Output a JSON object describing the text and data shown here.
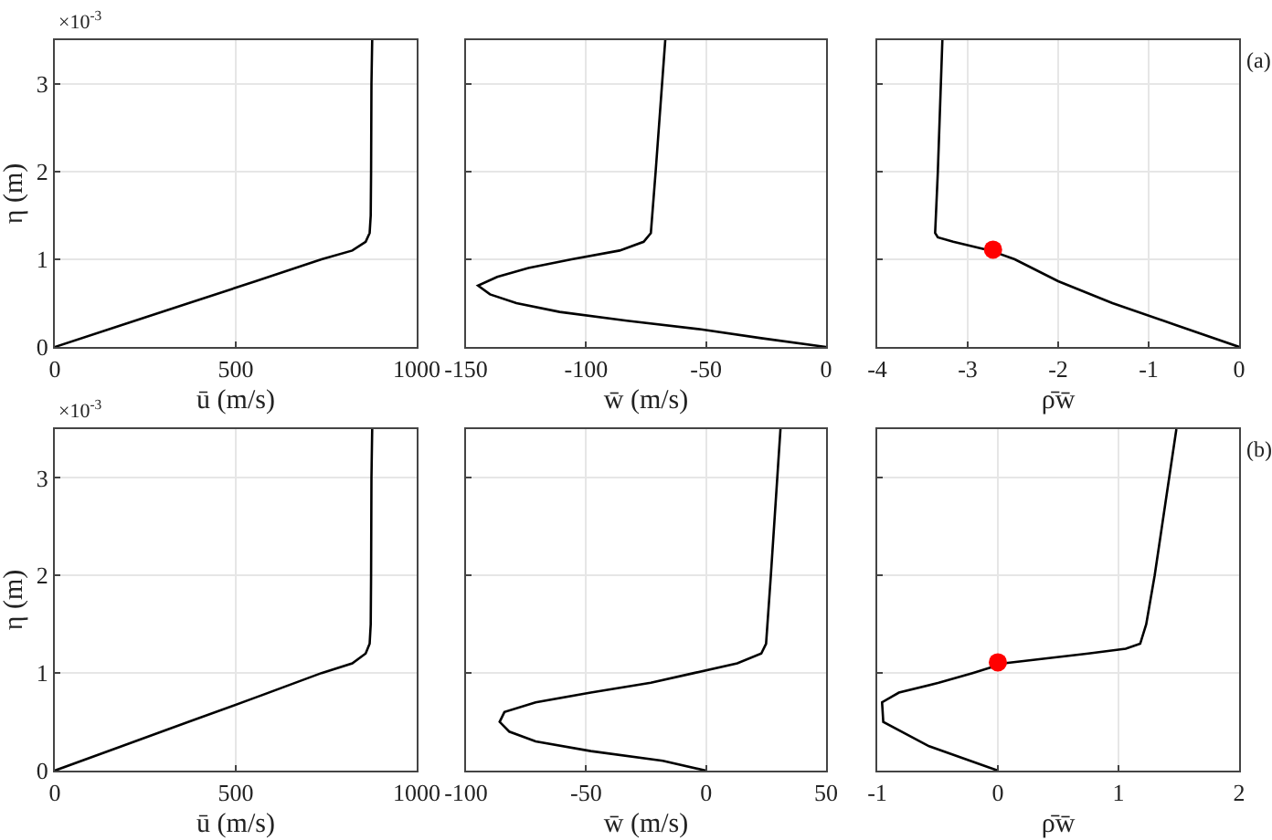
{
  "chart_data": [
    {
      "type": "line",
      "xlabel": "ū (m/s)",
      "ylabel": "η (m)",
      "xlim": [
        0,
        1000
      ],
      "xticks": [
        0,
        500,
        1000
      ],
      "ylim": [
        0,
        3.5
      ],
      "yticks": [
        0,
        1,
        2,
        3
      ],
      "grid": true,
      "annotations": [
        "×10$^{-3}$"
      ],
      "series": [
        {
          "color": "#000000",
          "marker": "none",
          "x": [
            0,
            185,
            370,
            555,
            737,
            822,
            859,
            870,
            873,
            874,
            875,
            877
          ],
          "values": [
            0,
            0.25,
            0.5,
            0.75,
            1.0,
            1.1,
            1.2,
            1.3,
            1.5,
            2,
            3,
            3.5
          ]
        }
      ]
    },
    {
      "type": "line",
      "xlabel": "w̄ (m/s)",
      "xlim": [
        -150,
        0
      ],
      "xticks": [
        -150,
        -100,
        -50,
        0
      ],
      "ylim": [
        0,
        3.5
      ],
      "yticks": [
        0,
        1,
        2,
        3
      ],
      "grid": true,
      "tick_labels": "x",
      "series": [
        {
          "color": "#000000",
          "marker": "none",
          "x": [
            0,
            -27,
            -52,
            -83,
            -111,
            -129,
            -140,
            -145,
            -137,
            -124,
            -106,
            -86,
            -76,
            -73,
            -71,
            -67
          ],
          "values": [
            0,
            0.1,
            0.2,
            0.3,
            0.4,
            0.5,
            0.6,
            0.7,
            0.8,
            0.9,
            1.0,
            1.1,
            1.2,
            1.3,
            2,
            3.5
          ]
        }
      ]
    },
    {
      "type": "line",
      "xlabel": "ρ̄w̄",
      "xlim": [
        -4,
        0
      ],
      "xticks": [
        -4,
        -3,
        -2,
        -1,
        0
      ],
      "ylim": [
        0,
        3.5
      ],
      "yticks": [
        0,
        1,
        2,
        3
      ],
      "grid": true,
      "tick_labels": "x",
      "annotations": [
        "(a)"
      ],
      "series": [
        {
          "color": "#000000",
          "marker": "none",
          "x": [
            0,
            -0.7,
            -1.4,
            -2.0,
            -2.48,
            -2.75,
            -3.16,
            -3.33,
            -3.36,
            -3.33,
            -3.28
          ],
          "values": [
            0,
            0.25,
            0.5,
            0.75,
            1.0,
            1.1,
            1.2,
            1.25,
            1.3,
            2,
            3.5
          ]
        },
        {
          "type": "scatter",
          "color": "#ff0000",
          "marker": "circle",
          "x": [
            -2.72
          ],
          "values": [
            1.11
          ]
        }
      ]
    },
    {
      "type": "line",
      "xlabel": "ū (m/s)",
      "ylabel": "η (m)",
      "xlim": [
        0,
        1000
      ],
      "xticks": [
        0,
        500,
        1000
      ],
      "ylim": [
        0,
        3.5
      ],
      "yticks": [
        0,
        1,
        2,
        3
      ],
      "grid": true,
      "annotations": [
        "×10$^{-3}$"
      ],
      "series": [
        {
          "color": "#000000",
          "marker": "none",
          "x": [
            0,
            185,
            370,
            555,
            737,
            822,
            859,
            870,
            873,
            874,
            875,
            877
          ],
          "values": [
            0,
            0.25,
            0.5,
            0.75,
            1.0,
            1.1,
            1.2,
            1.3,
            1.5,
            2,
            3,
            3.5
          ]
        }
      ]
    },
    {
      "type": "line",
      "xlabel": "w̄ (m/s)",
      "xlim": [
        -100,
        50
      ],
      "xticks": [
        -100,
        -50,
        0,
        50
      ],
      "ylim": [
        0,
        3.5
      ],
      "yticks": [
        0,
        1,
        2,
        3
      ],
      "grid": true,
      "tick_labels": "x",
      "series": [
        {
          "color": "#000000",
          "marker": "none",
          "x": [
            0,
            -18,
            -48,
            -71,
            -82,
            -86,
            -84,
            -71,
            -48,
            -23,
            -5,
            13,
            23,
            25,
            27,
            31
          ],
          "values": [
            0,
            0.1,
            0.2,
            0.3,
            0.4,
            0.5,
            0.6,
            0.7,
            0.8,
            0.9,
            1.0,
            1.1,
            1.2,
            1.3,
            2,
            3.5
          ]
        }
      ]
    },
    {
      "type": "line",
      "xlabel": "ρ̄w̄",
      "xlim": [
        -1,
        2
      ],
      "xticks": [
        -1,
        0,
        1,
        2
      ],
      "ylim": [
        0,
        3.5
      ],
      "yticks": [
        0,
        1,
        2,
        3
      ],
      "grid": true,
      "tick_labels": "x",
      "annotations": [
        "(b)"
      ],
      "series": [
        {
          "color": "#000000",
          "marker": "none",
          "x": [
            0,
            -0.57,
            -0.95,
            -0.96,
            -0.82,
            -0.49,
            -0.21,
            0.05,
            0.75,
            1.06,
            1.18,
            1.23,
            1.3,
            1.48
          ],
          "values": [
            0,
            0.25,
            0.5,
            0.7,
            0.8,
            0.9,
            1.0,
            1.1,
            1.2,
            1.25,
            1.3,
            1.5,
            2,
            3.5
          ]
        },
        {
          "type": "scatter",
          "color": "#ff0000",
          "marker": "circle",
          "x": [
            0
          ],
          "values": [
            1.11
          ]
        }
      ]
    }
  ]
}
